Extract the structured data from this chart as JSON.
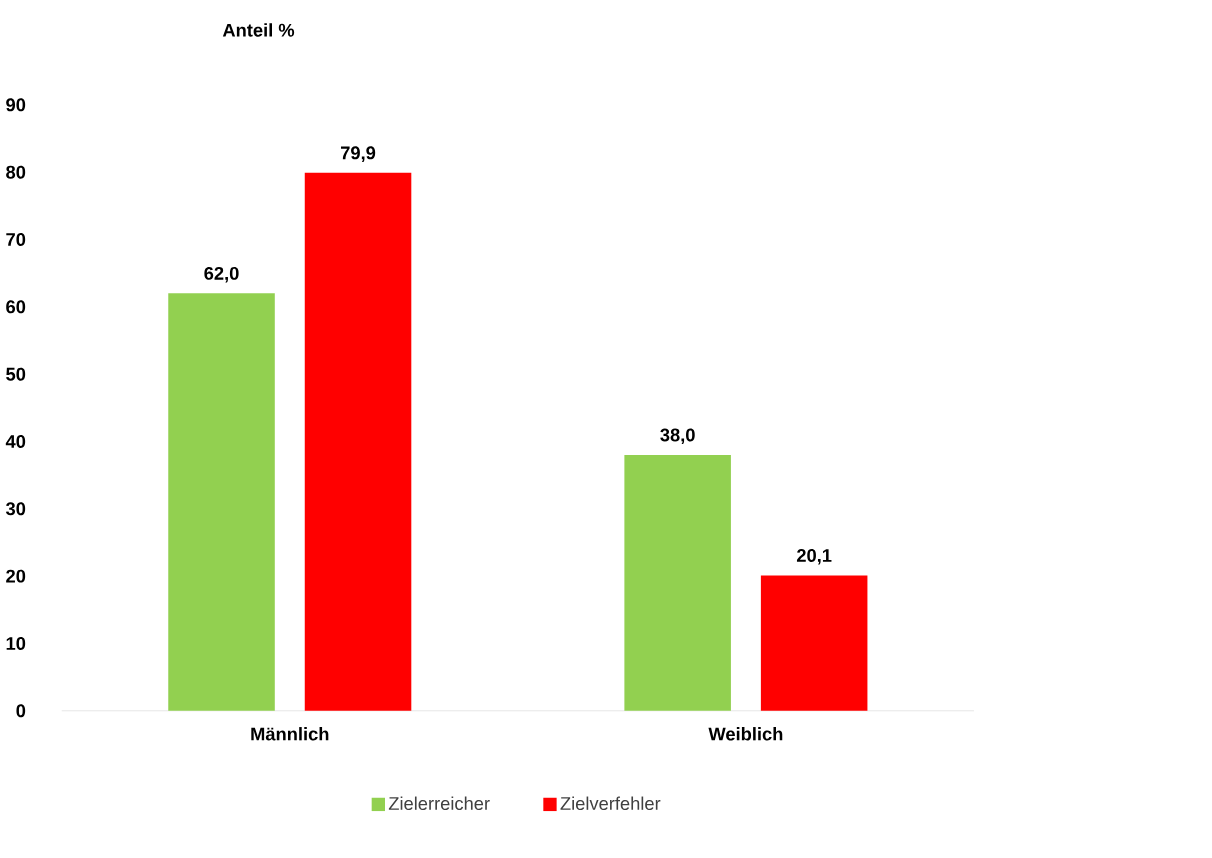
{
  "chart_data": {
    "type": "bar",
    "ylabel": "Anteil %",
    "categories": [
      "Männlich",
      "Weiblich"
    ],
    "series": [
      {
        "name": "Zielerreicher",
        "color": "#92d050",
        "values": [
          62.0,
          38.0
        ],
        "value_labels": [
          "62,0",
          "38,0"
        ]
      },
      {
        "name": "Zielverfehler",
        "color": "#ff0000",
        "values": [
          79.9,
          20.1
        ],
        "value_labels": [
          "79,9",
          "20,1"
        ]
      }
    ],
    "ylim": [
      0,
      90
    ],
    "yticks": [
      0,
      10,
      20,
      30,
      40,
      50,
      60,
      70,
      80,
      90
    ],
    "grid": false,
    "legend": "bottom"
  }
}
